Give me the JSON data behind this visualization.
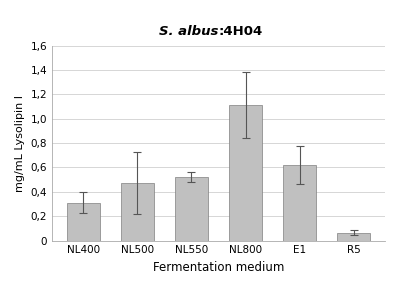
{
  "categories": [
    "NL400",
    "NL500",
    "NL550",
    "NL800",
    "E1",
    "R5"
  ],
  "values": [
    0.31,
    0.475,
    0.52,
    1.11,
    0.62,
    0.065
  ],
  "errors": [
    0.085,
    0.255,
    0.04,
    0.27,
    0.155,
    0.02
  ],
  "bar_color": "#c0c0c0",
  "bar_edgecolor": "#808080",
  "title": "S. albus:4H04",
  "title_italic_part": "S. albus",
  "title_normal_part": ":4H04",
  "xlabel": "Fermentation medium",
  "ylabel": "mg/mL Lysolipin I",
  "ylim": [
    0,
    1.6
  ],
  "yticks": [
    0.0,
    0.2,
    0.4,
    0.6,
    0.8,
    1.0,
    1.2,
    1.4,
    1.6
  ],
  "ytick_labels": [
    "0",
    "0,2",
    "0,4",
    "0,6",
    "0,8",
    "1,0",
    "1,2",
    "1,4",
    "1,6"
  ],
  "background_color": "#ffffff",
  "grid_color": "#d0d0d0",
  "figsize": [
    4.0,
    2.89
  ],
  "dpi": 100
}
